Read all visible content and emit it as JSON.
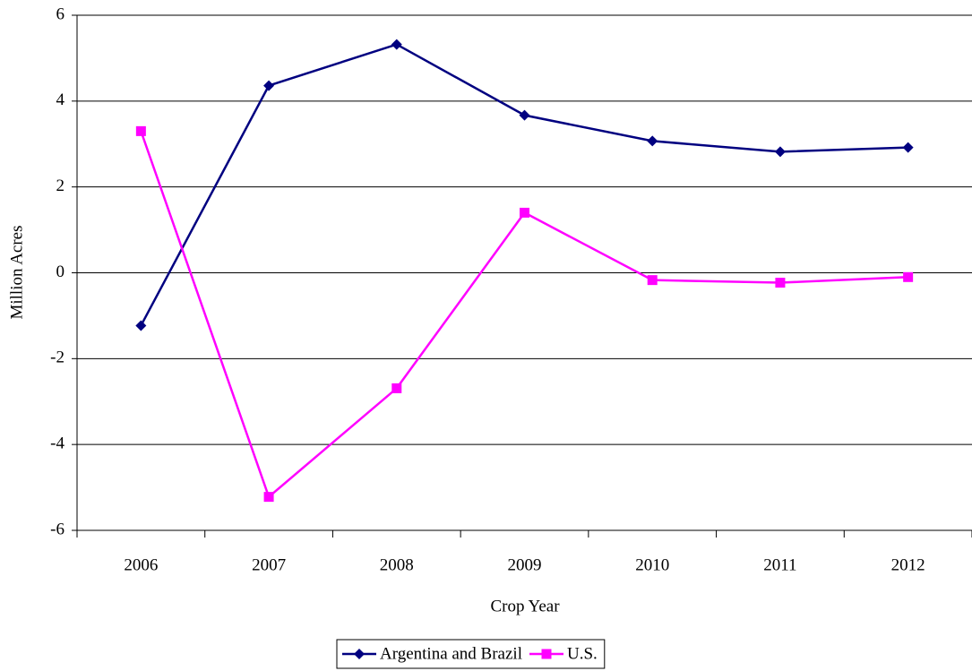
{
  "chart_data": {
    "type": "line",
    "x_label": "Crop Year",
    "y_label": "Million Acres",
    "categories": [
      "2006",
      "2007",
      "2008",
      "2009",
      "2010",
      "2011",
      "2012"
    ],
    "series": [
      {
        "name": "Argentina and Brazil",
        "color": "#000080",
        "marker": "diamond",
        "values": [
          -1.23,
          4.36,
          5.32,
          3.67,
          3.07,
          2.82,
          2.92
        ]
      },
      {
        "name": "U.S.",
        "color": "#ff00ff",
        "marker": "square",
        "values": [
          3.3,
          -5.22,
          -2.69,
          1.4,
          -0.17,
          -0.23,
          -0.1
        ]
      }
    ],
    "ylim": [
      -6,
      6
    ],
    "yticks": [
      -6,
      -4,
      -2,
      0,
      2,
      4,
      6
    ],
    "grid": true,
    "legend": "bottom"
  }
}
